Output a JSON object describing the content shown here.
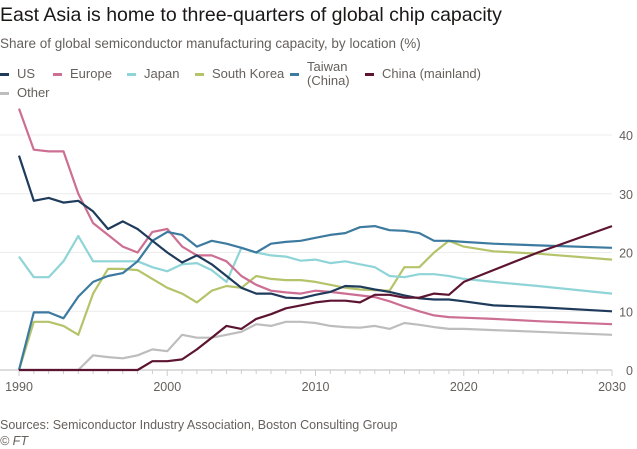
{
  "chart_data": {
    "type": "line",
    "title": "East Asia is home to three-quarters of global chip capacity",
    "subtitle": "Share of global semiconductor manufacturing capacity, by location (%)",
    "xlabel": "",
    "ylabel": "",
    "xlim": [
      1990,
      2030
    ],
    "ylim": [
      0,
      44
    ],
    "x_ticks": [
      "1990",
      "2000",
      "2010",
      "2020",
      "2030"
    ],
    "y_ticks": [
      "0",
      "10",
      "20",
      "30",
      "40"
    ],
    "grid": "horizontal",
    "y_axis_side": "right",
    "legend_position": "top",
    "x": [
      1990,
      1991,
      1992,
      1993,
      1994,
      1995,
      1996,
      1997,
      1998,
      1999,
      2000,
      2001,
      2002,
      2003,
      2004,
      2005,
      2006,
      2007,
      2008,
      2009,
      2010,
      2011,
      2012,
      2013,
      2014,
      2015,
      2016,
      2017,
      2018,
      2019,
      2020,
      2022,
      2025,
      2030
    ],
    "series": [
      {
        "name": "US",
        "color": "#1f3b5c",
        "values": [
          36.5,
          28.8,
          29.3,
          28.5,
          28.8,
          27,
          24,
          25.3,
          24,
          22,
          20,
          18.3,
          19.5,
          18,
          16,
          14,
          13,
          13,
          12.3,
          12.2,
          12.8,
          13.3,
          14.3,
          14.2,
          13.7,
          13.3,
          12.7,
          12.2,
          12,
          12,
          11.7,
          11,
          10.7,
          10
        ]
      },
      {
        "name": "Europe",
        "color": "#cc6f93",
        "values": [
          44.5,
          37.5,
          37.2,
          37.2,
          30,
          25,
          23,
          21,
          20,
          23.5,
          24,
          21,
          19.5,
          19.5,
          18.5,
          16,
          14.5,
          13.5,
          13.2,
          13,
          13.5,
          13.3,
          13,
          12.7,
          12.4,
          11.7,
          10.8,
          10,
          9.3,
          9,
          8.9,
          8.7,
          8.3,
          7.8
        ]
      },
      {
        "name": "Japan",
        "color": "#8fd4d6",
        "values": [
          19.3,
          15.8,
          15.8,
          18.5,
          22.8,
          18.5,
          18.5,
          18.5,
          18.5,
          17.5,
          16.8,
          18,
          18.2,
          17,
          15,
          20.8,
          20,
          19.5,
          19.3,
          18.6,
          18.8,
          18.2,
          18.5,
          18,
          17.5,
          16,
          15.8,
          16.3,
          16.3,
          16,
          15.5,
          15,
          14.3,
          13
        ]
      },
      {
        "name": "South Korea",
        "color": "#b5c46a",
        "values": [
          0,
          8.2,
          8.2,
          7.5,
          6,
          13,
          17.2,
          17.2,
          17,
          15.5,
          14,
          13,
          11.5,
          13.5,
          14.3,
          14,
          16,
          15.5,
          15.3,
          15.3,
          15,
          14.5,
          14,
          13.7,
          13.6,
          13.5,
          17.5,
          17.5,
          20,
          22,
          21,
          20.2,
          19.8,
          18.8
        ]
      },
      {
        "name": "Taiwan (China)",
        "color": "#3d7a9f",
        "values": [
          0,
          9.8,
          9.8,
          8.8,
          12.5,
          15,
          16,
          16.5,
          18.5,
          22,
          23.5,
          23,
          21,
          22,
          21.5,
          20.8,
          20,
          21.5,
          21.8,
          22,
          22.5,
          23,
          23.3,
          24.3,
          24.5,
          23.8,
          23.7,
          23.3,
          22,
          22,
          21.8,
          21.5,
          21.2,
          20.8
        ]
      },
      {
        "name": "China (mainland)",
        "color": "#5c1431",
        "values": [
          0,
          0,
          0,
          0,
          0,
          0,
          0,
          0,
          0,
          1.5,
          1.5,
          1.8,
          3.5,
          5.5,
          7.5,
          7,
          8.7,
          9.5,
          10.5,
          11,
          11.5,
          11.8,
          11.8,
          11.5,
          12.8,
          12.8,
          12.3,
          12.3,
          13,
          12.8,
          15,
          17,
          20,
          24.5
        ]
      },
      {
        "name": "Other",
        "color": "#bdbdbd",
        "values": [
          0,
          0,
          0,
          0,
          0,
          2.5,
          2.2,
          2,
          2.5,
          3.5,
          3.2,
          6,
          5.5,
          5.5,
          6,
          6.5,
          7.8,
          7.5,
          8.2,
          8.2,
          8,
          7.5,
          7.3,
          7.2,
          7.5,
          7,
          8,
          7.7,
          7.3,
          7,
          7,
          6.8,
          6.5,
          6
        ]
      }
    ]
  },
  "legend": {
    "us": "US",
    "europe": "Europe",
    "japan": "Japan",
    "south_korea": "South Korea",
    "taiwan_line1": "Taiwan",
    "taiwan_line2": "(China)",
    "china": "China (mainland)",
    "other": "Other"
  },
  "footer": {
    "source": "Sources: Semiconductor Industry Association, Boston Consulting Group",
    "copyright": "© FT"
  }
}
